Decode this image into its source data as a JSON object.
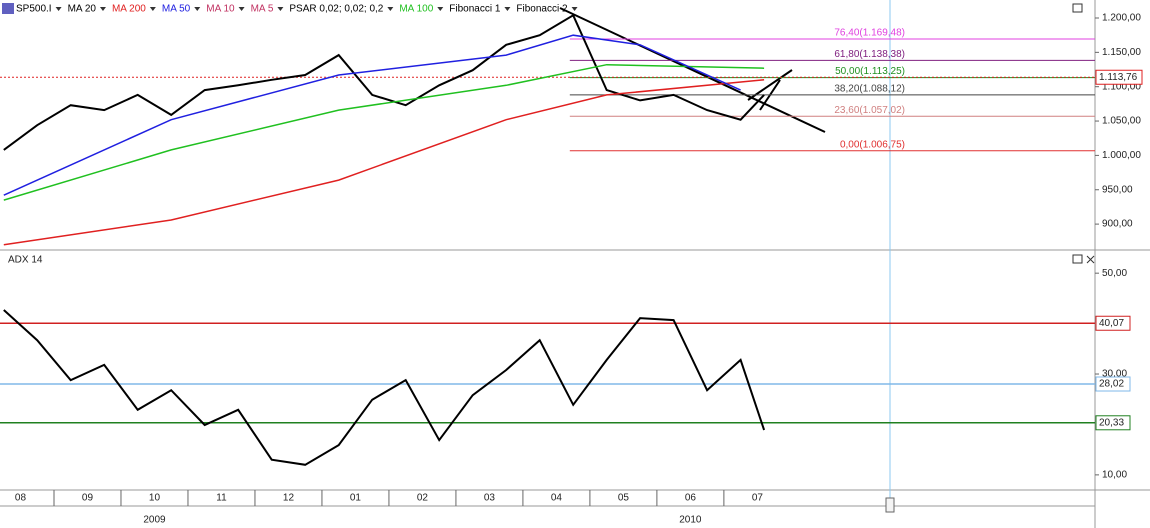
{
  "chart_data": [
    {
      "type": "line",
      "toolbar": [
        {
          "text": "SP500.I",
          "color": "#000000"
        },
        {
          "text": "MA 20",
          "color": "#000000"
        },
        {
          "text": "MA 200",
          "color": "#e02020"
        },
        {
          "text": "MA 50",
          "color": "#2020e0"
        },
        {
          "text": "MA 10",
          "color": "#c03060"
        },
        {
          "text": "MA 5",
          "color": "#c03060"
        },
        {
          "text": "PSAR 0,02; 0,02; 0,2",
          "color": "#000000"
        },
        {
          "text": "MA 100",
          "color": "#20c020"
        },
        {
          "text": "Fibonacci 1",
          "color": "#000000"
        },
        {
          "text": "Fibonacci 2",
          "color": "#000000"
        }
      ],
      "xlim": [
        0.194,
        16.54
      ],
      "xticks": [
        {
          "value": 0.5,
          "label": "08"
        },
        {
          "value": 1.5,
          "label": "09"
        },
        {
          "value": 2.5,
          "label": "10"
        },
        {
          "value": 3.5,
          "label": "11"
        },
        {
          "value": 4.5,
          "label": "12"
        },
        {
          "value": 5.5,
          "label": "01"
        },
        {
          "value": 6.5,
          "label": "02"
        },
        {
          "value": 7.5,
          "label": "03"
        },
        {
          "value": 8.5,
          "label": "04"
        },
        {
          "value": 9.5,
          "label": "05"
        },
        {
          "value": 10.5,
          "label": "06"
        },
        {
          "value": 11.5,
          "label": "07"
        }
      ],
      "year_labels": [
        {
          "value": 2.5,
          "label": "2009"
        },
        {
          "value": 10.5,
          "label": "2010"
        }
      ],
      "ylim": [
        862.3,
        1226.2
      ],
      "yticks": [
        {
          "value": 1200,
          "label": "1.200,00"
        },
        {
          "value": 1150,
          "label": "1.150,00"
        },
        {
          "value": 1100,
          "label": "1.100,00"
        },
        {
          "value": 1050,
          "label": "1.050,00"
        },
        {
          "value": 1000,
          "label": "1.000,00"
        },
        {
          "value": 950,
          "label": "950,00"
        },
        {
          "value": 900,
          "label": "900,00"
        }
      ],
      "series": [
        {
          "color": "#000000",
          "x": [
            0.25,
            0.75,
            1.25,
            1.75,
            2.25,
            2.75,
            3.25,
            3.75,
            4.25,
            4.75,
            5.25,
            5.75,
            6.25,
            6.75,
            7.25,
            7.75,
            8.25,
            8.75,
            9.25,
            9.75,
            10.25,
            10.75,
            11.25,
            11.6
          ],
          "values": [
            1008,
            1044,
            1073,
            1066,
            1088,
            1059,
            1095,
            1102,
            1110,
            1117,
            1146,
            1088,
            1073,
            1102,
            1124,
            1161,
            1175,
            1204,
            1095,
            1080,
            1088,
            1066,
            1052,
            1088
          ]
        },
        {
          "color": "#e02020",
          "x": [
            0.25,
            2.75,
            5.25,
            7.75,
            9.25,
            11.6
          ],
          "values": [
            870,
            906,
            964,
            1052,
            1088,
            1110
          ]
        },
        {
          "color": "#20c020",
          "x": [
            0.25,
            2.75,
            5.25,
            7.75,
            9.25,
            11.6
          ],
          "values": [
            935,
            1008,
            1066,
            1102,
            1132,
            1127
          ]
        },
        {
          "color": "#2020e0",
          "x": [
            0.25,
            2.75,
            5.25,
            7.75,
            8.75,
            9.75,
            11.25
          ],
          "values": [
            942,
            1052,
            1117,
            1146,
            1175,
            1161,
            1095
          ]
        }
      ],
      "fib_start": 8.7,
      "fibonacci": [
        {
          "value": 1006.75,
          "label": "0,00(1.006,75)",
          "color": "#e03030"
        },
        {
          "value": 1057.02,
          "label": "23,60(1.057,02)",
          "color": "#d08080"
        },
        {
          "value": 1088.12,
          "label": "38,20(1.088,12)",
          "color": "#444444"
        },
        {
          "value": 1113.25,
          "label": "50,00(1.113,25)",
          "color": "#209020"
        },
        {
          "value": 1138.38,
          "label": "61,80(1.138,38)",
          "color": "#802080"
        },
        {
          "value": 1169.48,
          "label": "76,40(1.169,48)",
          "color": "#e040e0"
        }
      ],
      "last_price": {
        "value": 1113.76,
        "label": "1.113,76",
        "color": "#e02020"
      }
    },
    {
      "type": "line",
      "title": "ADX 14",
      "ylim": [
        7,
        54.2
      ],
      "yticks": [
        {
          "value": 50,
          "label": "50,00"
        },
        {
          "value": 30,
          "label": "30,00"
        },
        {
          "value": 10,
          "label": "10,00"
        }
      ],
      "series": [
        {
          "color": "#000000",
          "x": [
            0.25,
            0.75,
            1.25,
            1.75,
            2.25,
            2.75,
            3.25,
            3.75,
            4.25,
            4.75,
            5.25,
            5.75,
            6.25,
            6.75,
            7.25,
            7.75,
            8.25,
            8.75,
            9.25,
            9.75,
            10.25,
            10.75,
            11.25,
            11.6
          ],
          "values": [
            42.7,
            36.7,
            28.8,
            31.8,
            22.9,
            26.8,
            19.9,
            22.9,
            13.0,
            12.0,
            15.9,
            24.9,
            28.8,
            16.9,
            25.8,
            30.8,
            36.7,
            23.9,
            32.8,
            41.1,
            40.7,
            26.8,
            32.8,
            18.9
          ]
        }
      ],
      "levels": [
        {
          "value": 40.07,
          "label": "40,07",
          "color": "#d02020"
        },
        {
          "value": 28.02,
          "label": "28,02",
          "color": "#80b8e8"
        },
        {
          "value": 20.33,
          "label": "20,33",
          "color": "#208020"
        }
      ]
    }
  ]
}
